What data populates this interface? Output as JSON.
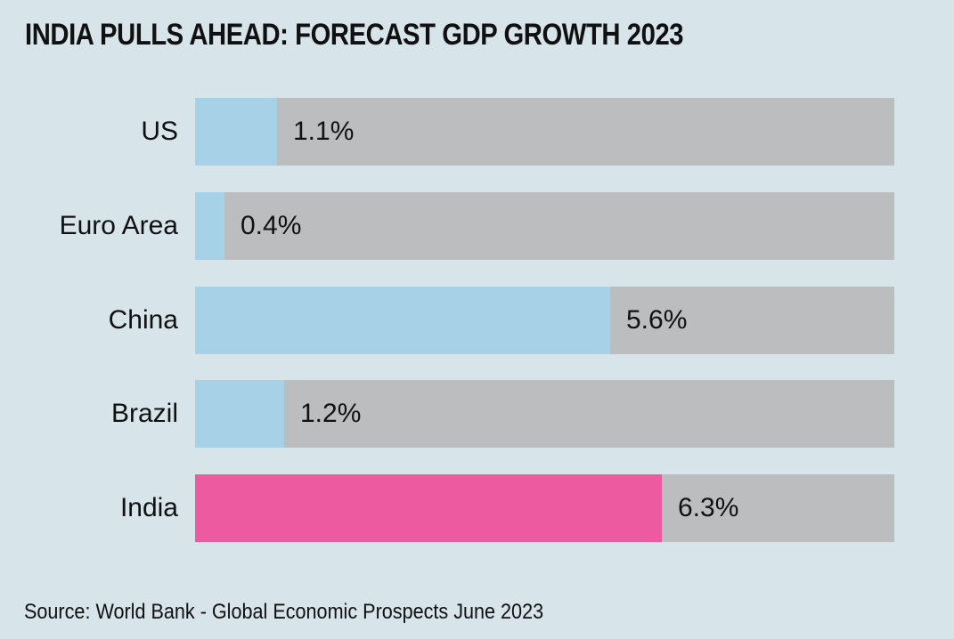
{
  "chart_data": {
    "type": "bar",
    "orientation": "horizontal",
    "title": "INDIA PULLS AHEAD: FORECAST GDP GROWTH 2023",
    "categories": [
      "US",
      "Euro Area",
      "China",
      "Brazil",
      "India"
    ],
    "values": [
      1.1,
      0.4,
      5.6,
      1.2,
      6.3
    ],
    "value_labels": [
      "1.1%",
      "0.4%",
      "5.6%",
      "1.2%",
      "6.3%"
    ],
    "highlight": "India",
    "colors": {
      "default": "#a6d1e6",
      "highlight": "#ee5a9f",
      "track": "#bcbdbf",
      "background": "#d7e4e9"
    },
    "xlim": [
      0,
      9.43
    ],
    "xlabel": "",
    "ylabel": "",
    "grid": false,
    "legend": "none",
    "source": "Source: World Bank - Global Economic Prospects June 2023"
  }
}
